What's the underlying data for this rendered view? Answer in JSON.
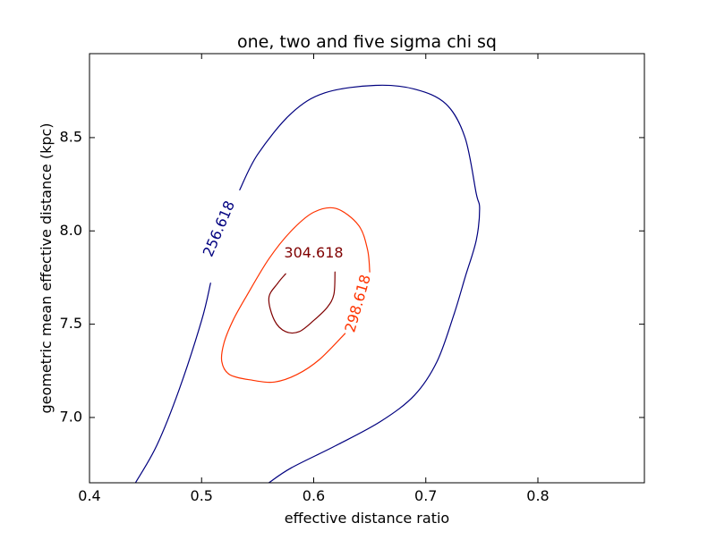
{
  "chart_data": {
    "type": "contour",
    "title": "one, two and five sigma chi sq",
    "xlabel": "effective distance ratio",
    "ylabel": "geometric mean effective distance (kpc)",
    "xlim": [
      0.4,
      0.895
    ],
    "ylim": [
      6.65,
      8.95
    ],
    "xticks": [
      0.4,
      0.5,
      0.6,
      0.7,
      0.8
    ],
    "xtick_labels": [
      "0.4",
      "0.5",
      "0.6",
      "0.7",
      "0.8"
    ],
    "yticks": [
      7.0,
      7.5,
      8.0,
      8.5
    ],
    "ytick_labels": [
      "7.0",
      "7.5",
      "8.0",
      "8.5"
    ],
    "grid": false,
    "contours": [
      {
        "level": "256.618",
        "color": "#00007f",
        "label_at": [
          0.516,
          8.01
        ],
        "label_angle": -67,
        "segments": [
          [
            [
              0.441,
              6.65
            ],
            [
              0.46,
              6.85
            ],
            [
              0.48,
              7.15
            ],
            [
              0.5,
              7.52
            ],
            [
              0.508,
              7.72
            ]
          ],
          [
            [
              0.534,
              8.22
            ],
            [
              0.55,
              8.41
            ],
            [
              0.58,
              8.63
            ],
            [
              0.61,
              8.74
            ],
            [
              0.655,
              8.78
            ],
            [
              0.69,
              8.76
            ],
            [
              0.718,
              8.68
            ],
            [
              0.735,
              8.5
            ],
            [
              0.745,
              8.2
            ],
            [
              0.748,
              8.12
            ],
            [
              0.745,
              7.95
            ],
            [
              0.735,
              7.75
            ],
            [
              0.725,
              7.55
            ],
            [
              0.71,
              7.3
            ],
            [
              0.69,
              7.12
            ],
            [
              0.66,
              6.98
            ],
            [
              0.62,
              6.85
            ],
            [
              0.58,
              6.73
            ],
            [
              0.56,
              6.65
            ]
          ]
        ]
      },
      {
        "level": "298.618",
        "color": "#ff3300",
        "label_at": [
          0.64,
          7.61
        ],
        "label_angle": -74,
        "segments": [
          [
            [
              0.65,
              7.78
            ],
            [
              0.648,
              7.9
            ],
            [
              0.64,
              8.03
            ],
            [
              0.62,
              8.12
            ],
            [
              0.6,
              8.1
            ],
            [
              0.58,
              8.0
            ],
            [
              0.56,
              7.85
            ],
            [
              0.54,
              7.65
            ],
            [
              0.528,
              7.52
            ],
            [
              0.52,
              7.4
            ],
            [
              0.518,
              7.3
            ],
            [
              0.525,
              7.23
            ],
            [
              0.545,
              7.2
            ],
            [
              0.565,
              7.19
            ],
            [
              0.585,
              7.23
            ],
            [
              0.605,
              7.31
            ],
            [
              0.628,
              7.45
            ]
          ]
        ]
      },
      {
        "level": "304.618",
        "color": "#7f0000",
        "label_at": [
          0.6,
          7.88
        ],
        "label_angle": 0,
        "segments": [
          [
            [
              0.575,
              7.77
            ],
            [
              0.568,
              7.72
            ],
            [
              0.56,
              7.64
            ],
            [
              0.565,
              7.52
            ],
            [
              0.575,
              7.46
            ],
            [
              0.587,
              7.46
            ],
            [
              0.6,
              7.52
            ],
            [
              0.612,
              7.59
            ],
            [
              0.618,
              7.66
            ],
            [
              0.619,
              7.78
            ]
          ]
        ]
      }
    ]
  }
}
